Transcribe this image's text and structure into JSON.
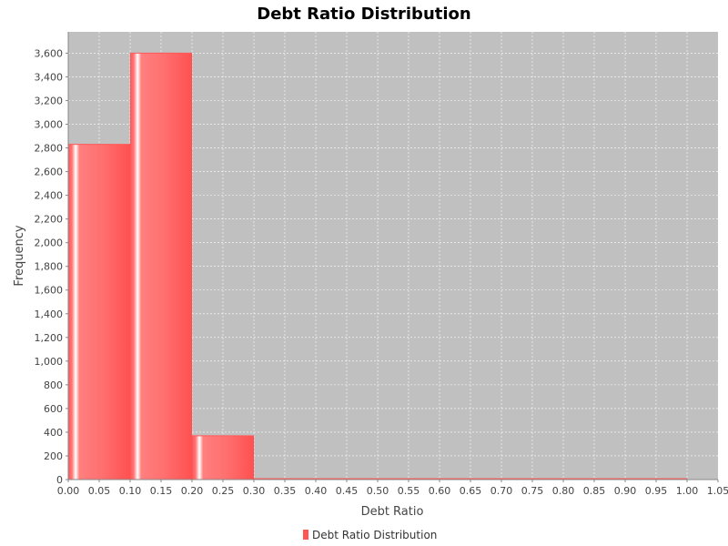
{
  "colors": {
    "plot_background": "#c0c0c0",
    "bar_fill": "#ff5555",
    "bar_highlight": "#ffffff",
    "gridline": "#ffffff",
    "axis": "#888888",
    "text": "#444444"
  },
  "chart_data": {
    "type": "bar",
    "title": "Debt Ratio Distribution",
    "xlabel": "Debt Ratio",
    "ylabel": "Frequency",
    "xlim": [
      0.0,
      1.05
    ],
    "ylim": [
      0,
      3780
    ],
    "grid": true,
    "legend_position": "bottom-center",
    "x_ticks": [
      "0.00",
      "0.05",
      "0.10",
      "0.15",
      "0.20",
      "0.25",
      "0.30",
      "0.35",
      "0.40",
      "0.45",
      "0.50",
      "0.55",
      "0.60",
      "0.65",
      "0.70",
      "0.75",
      "0.80",
      "0.85",
      "0.90",
      "0.95",
      "1.00",
      "1.05"
    ],
    "y_ticks": [
      "0",
      "200",
      "400",
      "600",
      "800",
      "1,000",
      "1,200",
      "1,400",
      "1,600",
      "1,800",
      "2,000",
      "2,200",
      "2,400",
      "2,600",
      "2,800",
      "3,000",
      "3,200",
      "3,400",
      "3,600"
    ],
    "series": [
      {
        "name": "Debt Ratio Distribution",
        "bins": [
          {
            "x0": 0.0,
            "x1": 0.1,
            "value": 2830
          },
          {
            "x0": 0.1,
            "x1": 0.2,
            "value": 3600
          },
          {
            "x0": 0.2,
            "x1": 0.3,
            "value": 370
          },
          {
            "x0": 0.3,
            "x1": 0.4,
            "value": 8
          },
          {
            "x0": 0.4,
            "x1": 0.5,
            "value": 3
          },
          {
            "x0": 0.5,
            "x1": 0.6,
            "value": 2
          },
          {
            "x0": 0.6,
            "x1": 0.7,
            "value": 1
          },
          {
            "x0": 0.7,
            "x1": 0.8,
            "value": 1
          },
          {
            "x0": 0.8,
            "x1": 0.9,
            "value": 1
          },
          {
            "x0": 0.9,
            "x1": 1.0,
            "value": 2
          },
          {
            "x0": 1.0,
            "x1": 1.05,
            "value": 0
          }
        ]
      }
    ]
  }
}
